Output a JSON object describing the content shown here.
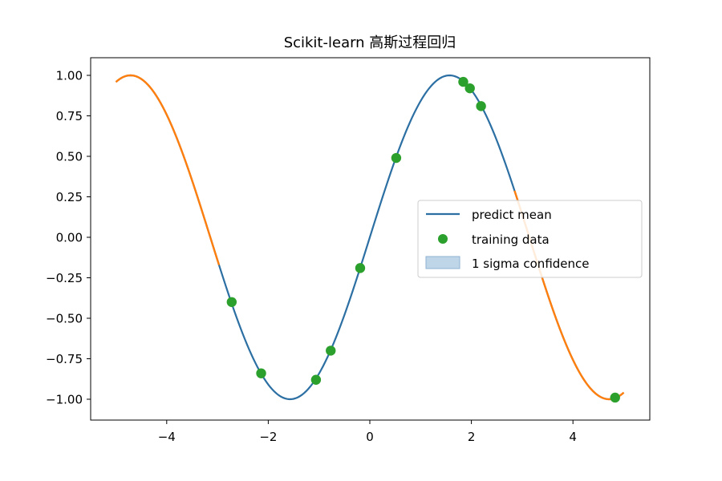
{
  "chart_data": {
    "type": "line",
    "title": "Scikit-learn 高斯过程回归",
    "xlabel": "",
    "ylabel": "",
    "xlim": [
      -5.5,
      5.5
    ],
    "ylim": [
      -1.12,
      1.12
    ],
    "x_ticks": [
      -4,
      -2,
      0,
      2,
      4
    ],
    "x_tick_labels": [
      "−4",
      "−2",
      "0",
      "2",
      "4"
    ],
    "y_ticks": [
      1.0,
      0.75,
      0.5,
      0.25,
      0.0,
      -0.25,
      -0.5,
      -0.75,
      -1.0
    ],
    "y_tick_labels": [
      "1.00",
      "0.75",
      "0.50",
      "0.25",
      "0.00",
      "−0.25",
      "−0.50",
      "−0.75",
      "−1.00"
    ],
    "grid": false,
    "legend_position": "center-right",
    "series": [
      {
        "name": "predict mean",
        "kind": "line",
        "color": "#2c6fa3",
        "x_range": [
          -5.0,
          5.0
        ],
        "function": "sin(x)",
        "x_sample": [
          -5.0,
          -4.71,
          -4.0,
          -3.5,
          -3.0,
          -2.5,
          -2.0,
          -1.57,
          -1.0,
          -0.5,
          0.0,
          0.5,
          1.0,
          1.57,
          2.0,
          2.5,
          3.0,
          3.5,
          4.0,
          4.71,
          5.0
        ],
        "y_sample": [
          0.96,
          1.0,
          0.76,
          0.35,
          -0.14,
          -0.6,
          -0.91,
          -1.0,
          -0.84,
          -0.48,
          0.0,
          0.48,
          0.84,
          1.0,
          0.91,
          0.6,
          0.14,
          -0.35,
          -0.76,
          -1.0,
          -0.96
        ]
      },
      {
        "name": "training data",
        "kind": "scatter",
        "color": "#2ca02c",
        "x": [
          -2.72,
          -2.14,
          -1.06,
          -0.77,
          -0.19,
          0.52,
          1.84,
          1.97,
          2.19,
          4.83
        ],
        "y": [
          -0.4,
          -0.84,
          -0.88,
          -0.7,
          -0.19,
          0.49,
          0.96,
          0.92,
          0.81,
          -0.99
        ]
      },
      {
        "name": "1 sigma confidence",
        "kind": "band",
        "color": "#ff7f0e",
        "legend_color": "#a9c8e2",
        "segments": [
          {
            "x_range": [
              -5.0,
              -2.97
            ]
          },
          {
            "x_range": [
              2.85,
              5.0
            ]
          }
        ]
      }
    ]
  }
}
